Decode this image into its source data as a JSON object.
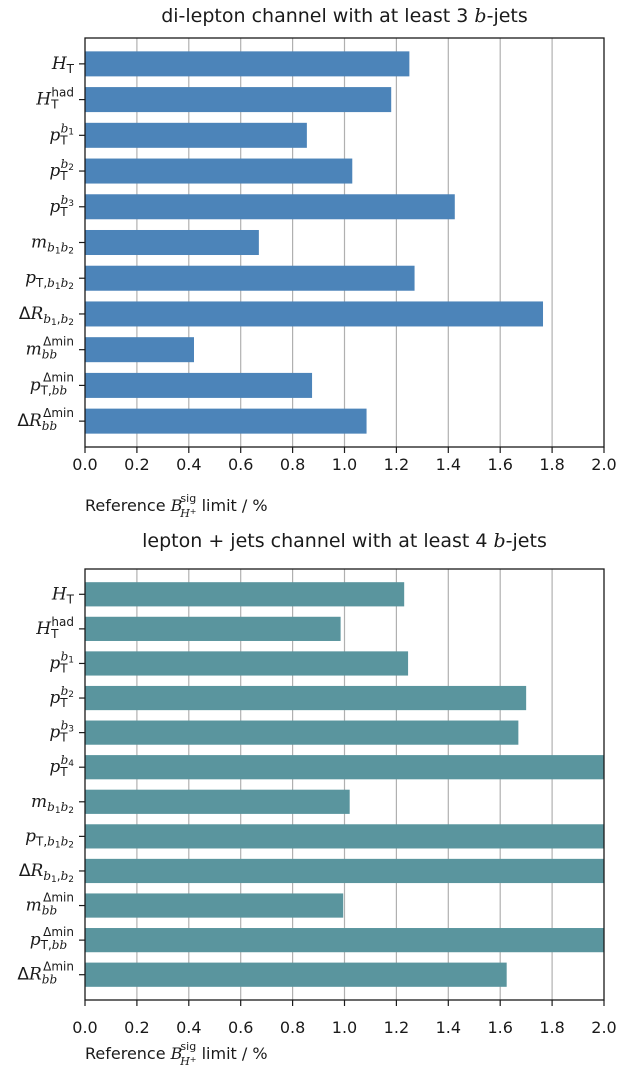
{
  "chart_data": [
    {
      "type": "bar",
      "orientation": "horizontal",
      "title": "di-lepton channel with at least 3 b-jets",
      "categories": [
        "H_T",
        "H_T^had",
        "p_T^b1",
        "p_T^b2",
        "p_T^b3",
        "m_b1b2",
        "p_T,b1b2",
        "ΔR_b1,b2",
        "m_bb^Δmin",
        "p_T,bb^Δmin",
        "ΔR_bb^Δmin"
      ],
      "values": [
        1.25,
        1.18,
        0.855,
        1.03,
        1.425,
        0.67,
        1.27,
        1.765,
        0.42,
        0.875,
        1.085
      ],
      "xlabel": "Reference B_{H+}^{sig} limit / %",
      "xlim": [
        0.0,
        2.0
      ],
      "xticks": [
        "0.0",
        "0.2",
        "0.4",
        "0.6",
        "0.8",
        "1.0",
        "1.2",
        "1.4",
        "1.6",
        "1.8",
        "2.0"
      ],
      "grid": "vertical",
      "color": "#4c84b9"
    },
    {
      "type": "bar",
      "orientation": "horizontal",
      "title": "lepton + jets channel with at least 4 b-jets",
      "categories": [
        "H_T",
        "H_T^had",
        "p_T^b1",
        "p_T^b2",
        "p_T^b3",
        "p_T^b4",
        "m_b1b2",
        "p_T,b1b2",
        "ΔR_b1,b2",
        "m_bb^Δmin",
        "p_T,bb^Δmin",
        "ΔR_bb^Δmin"
      ],
      "values": [
        1.23,
        0.985,
        1.245,
        1.7,
        1.67,
        2.0,
        1.02,
        2.0,
        2.0,
        0.995,
        2.0,
        1.625
      ],
      "xlabel": "Reference B_{H+}^{sig} limit / %",
      "xlim": [
        0.0,
        2.0
      ],
      "xticks": [
        "0.0",
        "0.2",
        "0.4",
        "0.6",
        "0.8",
        "1.0",
        "1.2",
        "1.4",
        "1.6",
        "1.8",
        "2.0"
      ],
      "grid": "vertical",
      "color": "#5a959e"
    }
  ]
}
